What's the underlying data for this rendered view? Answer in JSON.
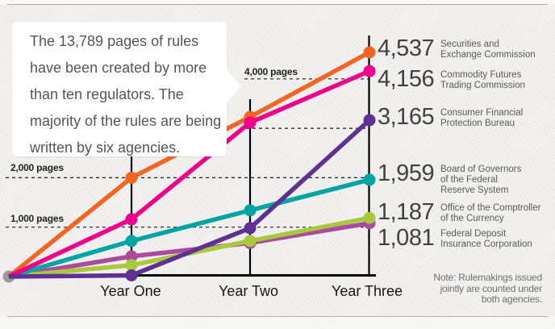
{
  "callout": {
    "text": "The 13,789 pages of rules\nhave been created by more\nthan ten regulators. The\nmajority of the rules are being\nwritten by six agencies."
  },
  "note": {
    "text": "Note: Rulemakings issued\njointly are counted under\nboth agencies."
  },
  "colors": {
    "sec": "#f26522",
    "cftc": "#ec008c",
    "cfpb": "#5e3192",
    "frb": "#00a5a3",
    "occ": "#a8c93c",
    "fdic": "#aa4b9e",
    "origin_dot": "#9b9b9b",
    "axis": "#000000",
    "gridline": "#1a1a1a"
  },
  "chart_data": {
    "type": "line",
    "categories": [
      "Year One",
      "Year Two",
      "Year Three"
    ],
    "unit": "pages",
    "ylim": [
      0,
      4800
    ],
    "grid": "dashed horizontal",
    "legend_position": "right of Year Three axis",
    "gridlines": [
      {
        "value": 4000,
        "label": "4,000 pages"
      },
      {
        "value": 3000,
        "label": ""
      },
      {
        "value": 2000,
        "label": "2,000 pages"
      },
      {
        "value": 1000,
        "label": "1,000 pages"
      }
    ],
    "series": [
      {
        "id": "sec",
        "name": "Securities and\nExchange Commission",
        "final_label": "4,537",
        "color": "#f26522",
        "values": [
          2000,
          3230,
          4537
        ]
      },
      {
        "id": "cftc",
        "name": "Commodity Futures\nTrading Commission",
        "final_label": "4,156",
        "color": "#ec008c",
        "values": [
          1160,
          3115,
          4156
        ]
      },
      {
        "id": "cfpb",
        "name": "Consumer Financial\nProtection Bureau",
        "final_label": "3,165",
        "color": "#5e3192",
        "values": [
          25,
          980,
          3165
        ]
      },
      {
        "id": "frb",
        "name": "Board of Governors\nof the Federal\nReserve System",
        "final_label": "1,959",
        "color": "#00a5a3",
        "values": [
          720,
          1340,
          1959
        ]
      },
      {
        "id": "occ",
        "name": "Office of the Comptroller\nof the Currency",
        "final_label": "1,187",
        "color": "#a8c93c",
        "values": [
          230,
          720,
          1187
        ]
      },
      {
        "id": "fdic",
        "name": "Federal Deposit\nInsurance Corporation",
        "final_label": "1,081",
        "color": "#aa4b9e",
        "values": [
          410,
          680,
          1081
        ]
      }
    ],
    "origin_value": 0
  }
}
